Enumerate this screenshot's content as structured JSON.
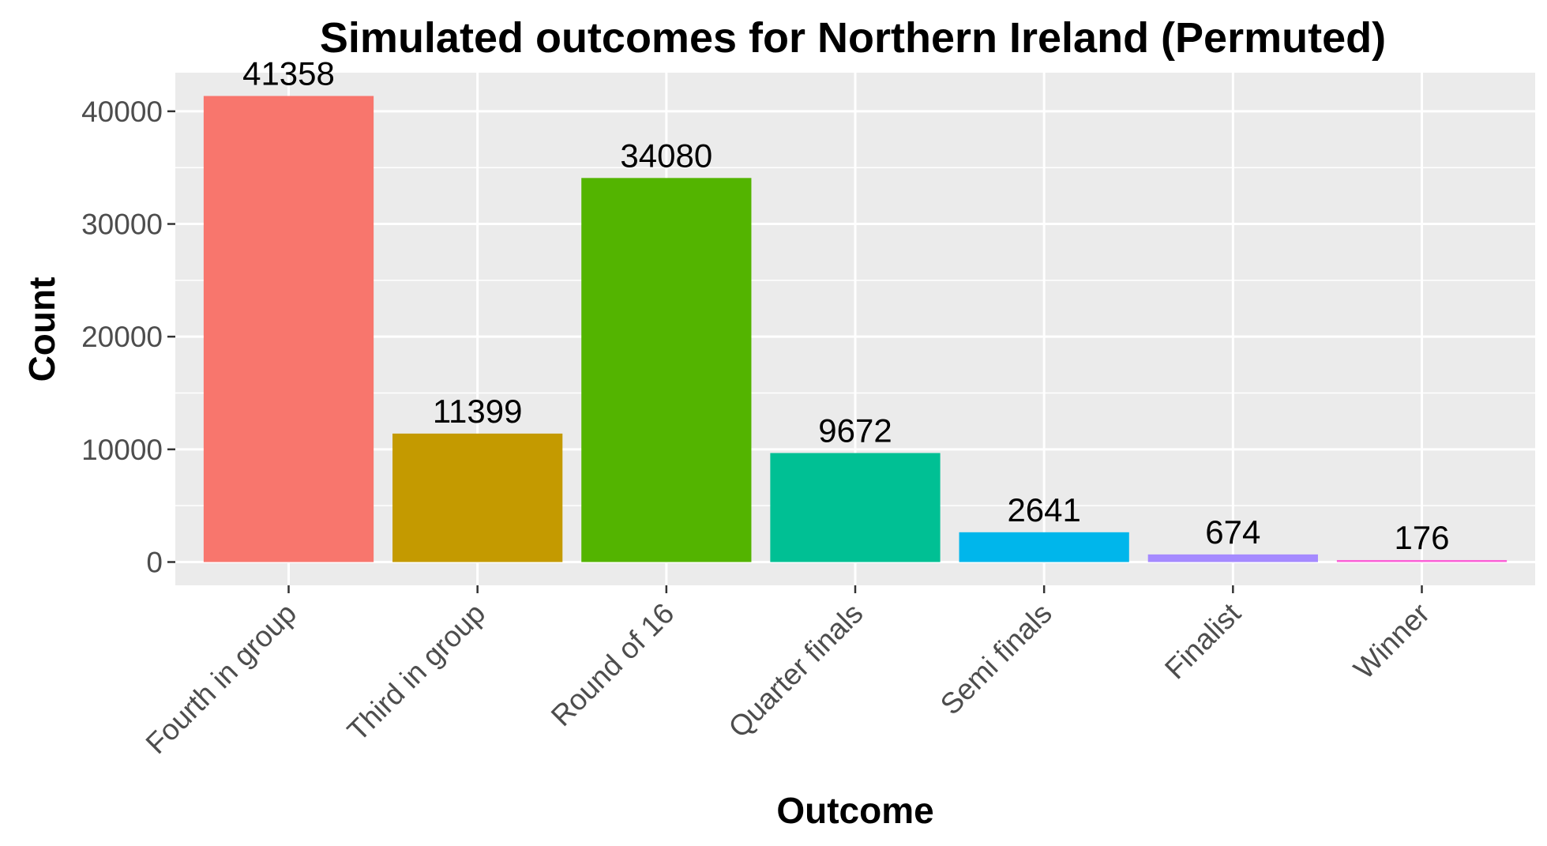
{
  "chart_data": {
    "type": "bar",
    "title": "Simulated outcomes for Northern Ireland (Permuted)",
    "xlabel": "Outcome",
    "ylabel": "Count",
    "categories": [
      "Fourth in group",
      "Third in group",
      "Round of 16",
      "Quarter finals",
      "Semi finals",
      "Finalist",
      "Winner"
    ],
    "values": [
      41358,
      11399,
      34080,
      9672,
      2641,
      674,
      176
    ],
    "data_labels": [
      "41358",
      "11399",
      "34080",
      "9672",
      "2641",
      "674",
      "176"
    ],
    "colors": [
      "#F8766D",
      "#C49A00",
      "#53B400",
      "#00C094",
      "#00B6EB",
      "#A58AFF",
      "#FB61D7"
    ],
    "yticks": [
      0,
      10000,
      20000,
      30000,
      40000
    ],
    "ytick_labels": [
      "0",
      "10000",
      "20000",
      "30000",
      "40000"
    ],
    "ylim": [
      -2068,
      43426
    ],
    "grid": true,
    "legend": "none",
    "panel_background": "#EBEBEB",
    "gridline_color": "#FFFFFF"
  }
}
